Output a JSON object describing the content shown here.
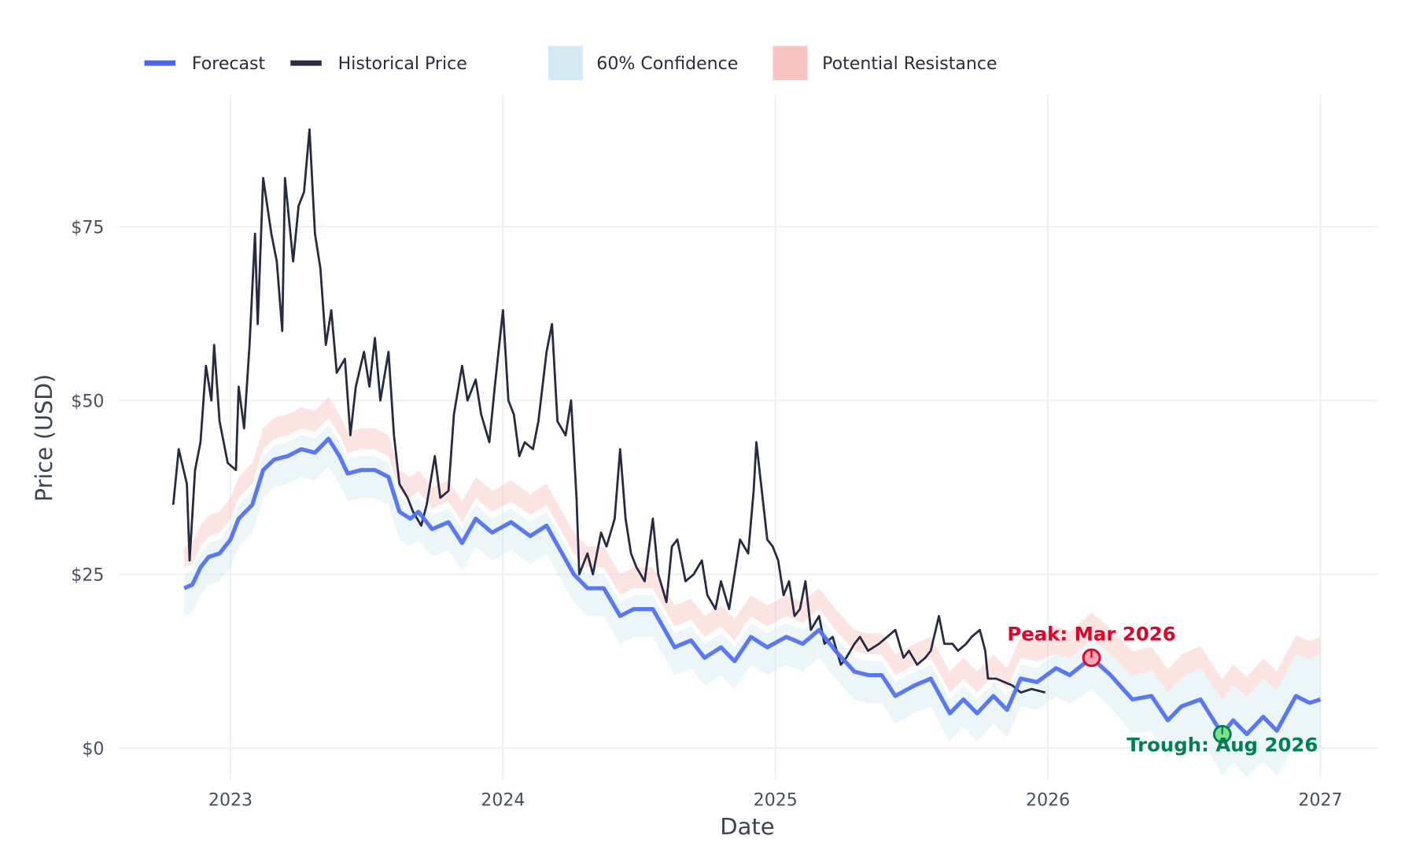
{
  "chart_data": {
    "type": "line",
    "title": "",
    "xlabel": "Date",
    "ylabel": "Price (USD)",
    "xlim": [
      2022.59,
      2027.21
    ],
    "ylim": [
      -4.5,
      94
    ],
    "grid": true,
    "legend_position": "top-left",
    "x_ticks": [
      {
        "value": 2023,
        "label": "2023"
      },
      {
        "value": 2024,
        "label": "2024"
      },
      {
        "value": 2025,
        "label": "2025"
      },
      {
        "value": 2026,
        "label": "2026"
      },
      {
        "value": 2027,
        "label": "2027"
      }
    ],
    "y_ticks": [
      {
        "value": 0,
        "label": "$0"
      },
      {
        "value": 25,
        "label": "$25"
      },
      {
        "value": 50,
        "label": "$50"
      },
      {
        "value": 75,
        "label": "$75"
      }
    ],
    "legend": [
      {
        "label": "Forecast",
        "kind": "line",
        "color": "#4a66f0"
      },
      {
        "label": "Historical Price",
        "kind": "line",
        "color": "#2a2d45"
      },
      {
        "label": "60% Confidence",
        "kind": "patch",
        "color": "#d4eaf2"
      },
      {
        "label": "Potential Resistance",
        "kind": "patch",
        "color": "#f8c4c2"
      }
    ],
    "colors": {
      "forecast": "#5271f0",
      "historical": "#262a42",
      "confidence": "#d4eaf2",
      "resistance": "#f8c4c2",
      "peak": "#e0002a",
      "trough": "#008050",
      "grid": "#ebedf0"
    },
    "historical": {
      "name": "Historical Price",
      "x": [
        2022.79,
        2022.81,
        2022.84,
        2022.85,
        2022.87,
        2022.89,
        2022.91,
        2022.93,
        2022.94,
        2022.96,
        2022.99,
        2023.02,
        2023.03,
        2023.05,
        2023.07,
        2023.09,
        2023.1,
        2023.12,
        2023.15,
        2023.17,
        2023.19,
        2023.2,
        2023.23,
        2023.25,
        2023.27,
        2023.29,
        2023.31,
        2023.33,
        2023.35,
        2023.37,
        2023.39,
        2023.42,
        2023.44,
        2023.46,
        2023.49,
        2023.51,
        2023.53,
        2023.55,
        2023.58,
        2023.6,
        2023.62,
        2023.65,
        2023.67,
        2023.7,
        2023.72,
        2023.75,
        2023.77,
        2023.8,
        2023.82,
        2023.85,
        2023.87,
        2023.9,
        2023.92,
        2023.95,
        2023.97,
        2024.0,
        2024.02,
        2024.04,
        2024.06,
        2024.08,
        2024.11,
        2024.13,
        2024.16,
        2024.18,
        2024.2,
        2024.23,
        2024.25,
        2024.27,
        2024.28,
        2024.31,
        2024.33,
        2024.36,
        2024.38,
        2024.41,
        2024.43,
        2024.45,
        2024.47,
        2024.49,
        2024.52,
        2024.55,
        2024.57,
        2024.6,
        2024.62,
        2024.64,
        2024.67,
        2024.7,
        2024.73,
        2024.75,
        2024.78,
        2024.8,
        2024.83,
        2024.85,
        2024.87,
        2024.9,
        2024.92,
        2024.93,
        2024.95,
        2024.97,
        2024.99,
        2025.01,
        2025.03,
        2025.05,
        2025.07,
        2025.09,
        2025.11,
        2025.13,
        2025.16,
        2025.18,
        2025.21,
        2025.24,
        2025.26,
        2025.29,
        2025.31,
        2025.34,
        2025.38,
        2025.41,
        2025.44,
        2025.47,
        2025.49,
        2025.52,
        2025.55,
        2025.57,
        2025.6,
        2025.62,
        2025.65,
        2025.67,
        2025.7,
        2025.72,
        2025.75,
        2025.77,
        2025.78,
        2025.81,
        2025.84,
        2025.87,
        2025.9,
        2025.94,
        2025.99
      ],
      "y": [
        35,
        43,
        38,
        27,
        40,
        44,
        55,
        50,
        58,
        47,
        41,
        40,
        52,
        46,
        58,
        74,
        61,
        82,
        74,
        70,
        60,
        82,
        70,
        78,
        80,
        89,
        74,
        69,
        58,
        63,
        54,
        56,
        45,
        52,
        57,
        52,
        59,
        50,
        57,
        45,
        38,
        36,
        34,
        32,
        35,
        42,
        36,
        37,
        48,
        55,
        50,
        53,
        48,
        44,
        52,
        63,
        50,
        48,
        42,
        44,
        43,
        47,
        57,
        61,
        47,
        45,
        50,
        36,
        25,
        28,
        25,
        31,
        29,
        33,
        43,
        33,
        28,
        26,
        24,
        33,
        25,
        21,
        29,
        30,
        24,
        25,
        27,
        22,
        20,
        24,
        20,
        25,
        30,
        28,
        37,
        44,
        37,
        30,
        29,
        27,
        22,
        24,
        19,
        20,
        24,
        17,
        19,
        15,
        16,
        12,
        13,
        15,
        16,
        14,
        15,
        16,
        17,
        13,
        14,
        12,
        13,
        14,
        19,
        15,
        15,
        14,
        15,
        16,
        17,
        14,
        10,
        10,
        9.5,
        9,
        8,
        8.5,
        8
      ]
    },
    "forecast": {
      "name": "Forecast",
      "columns": [
        "date",
        "forecast",
        "confidence_low",
        "confidence_high",
        "resistance_low",
        "resistance_high"
      ],
      "rows": [
        [
          2022.83,
          23,
          19,
          25,
          26,
          29
        ],
        [
          2022.86,
          23.5,
          19.5,
          25.5,
          26.5,
          29.5
        ],
        [
          2022.89,
          26,
          22,
          28,
          29,
          32
        ],
        [
          2022.92,
          27.5,
          23.5,
          29.5,
          30.5,
          33.5
        ],
        [
          2022.96,
          28,
          24,
          30,
          31,
          34
        ],
        [
          2023.0,
          30,
          26,
          32,
          33,
          36
        ],
        [
          2023.03,
          33,
          29,
          35,
          36,
          39
        ],
        [
          2023.08,
          35,
          31,
          37,
          38,
          41
        ],
        [
          2023.12,
          40,
          36,
          42,
          43,
          46
        ],
        [
          2023.16,
          41.5,
          37.5,
          43.5,
          44.5,
          47.5
        ],
        [
          2023.21,
          42,
          38,
          44,
          45,
          48
        ],
        [
          2023.26,
          43,
          39,
          45,
          46,
          49
        ],
        [
          2023.31,
          42.5,
          38.5,
          44.5,
          45.5,
          48.5
        ],
        [
          2023.36,
          44.5,
          40.5,
          46.5,
          47.5,
          50.5
        ],
        [
          2023.4,
          42,
          38,
          44,
          45,
          48
        ],
        [
          2023.43,
          39.5,
          35.5,
          41.5,
          42.5,
          45.5
        ],
        [
          2023.48,
          40,
          36,
          42,
          43,
          46
        ],
        [
          2023.53,
          40,
          36,
          42,
          43,
          46
        ],
        [
          2023.58,
          39,
          35,
          41,
          42,
          45
        ],
        [
          2023.62,
          34,
          30,
          36,
          37,
          40
        ],
        [
          2023.66,
          33,
          29,
          35,
          36,
          39
        ],
        [
          2023.69,
          34,
          30,
          36,
          37,
          40
        ],
        [
          2023.74,
          31.5,
          27.5,
          33.5,
          34.5,
          37.5
        ],
        [
          2023.8,
          32.5,
          28.5,
          34.5,
          35.5,
          38.5
        ],
        [
          2023.85,
          29.5,
          25.5,
          31.5,
          32.5,
          35.5
        ],
        [
          2023.9,
          33,
          29,
          35,
          36,
          39
        ],
        [
          2023.96,
          31,
          27,
          33,
          34,
          37
        ],
        [
          2024.03,
          32.5,
          28.5,
          34.5,
          35.5,
          38.5
        ],
        [
          2024.1,
          30.5,
          26.5,
          32.5,
          33.5,
          36.5
        ],
        [
          2024.16,
          32,
          28,
          34,
          35,
          38
        ],
        [
          2024.21,
          28.5,
          24.5,
          30.5,
          31.5,
          34.5
        ],
        [
          2024.26,
          25,
          21,
          27,
          28,
          31
        ],
        [
          2024.31,
          23,
          19,
          25,
          26,
          29
        ],
        [
          2024.37,
          23,
          19,
          25,
          26,
          29
        ],
        [
          2024.43,
          19,
          15,
          21,
          22,
          25
        ],
        [
          2024.48,
          20,
          16,
          22,
          23,
          26
        ],
        [
          2024.55,
          20,
          16,
          22,
          23,
          26
        ],
        [
          2024.63,
          14.5,
          10.5,
          16.5,
          17.5,
          20.5
        ],
        [
          2024.69,
          15.5,
          11.5,
          17.5,
          18.5,
          21.5
        ],
        [
          2024.74,
          13,
          9,
          15,
          16,
          19
        ],
        [
          2024.8,
          14.5,
          10.5,
          16.5,
          17.5,
          20.5
        ],
        [
          2024.85,
          12.5,
          8.5,
          14.5,
          15.5,
          18.5
        ],
        [
          2024.91,
          16,
          12,
          18,
          19,
          22
        ],
        [
          2024.97,
          14.5,
          10.5,
          16.5,
          17.5,
          20.5
        ],
        [
          2025.04,
          16,
          12,
          18,
          19,
          22
        ],
        [
          2025.1,
          15,
          11,
          17,
          18,
          21
        ],
        [
          2025.16,
          17,
          13,
          19,
          20,
          23
        ],
        [
          2025.22,
          14,
          10,
          16,
          17,
          20
        ],
        [
          2025.29,
          11,
          7,
          13,
          14,
          17
        ],
        [
          2025.34,
          10.5,
          6.5,
          12.5,
          13.5,
          16.5
        ],
        [
          2025.39,
          10.5,
          6.5,
          12.5,
          13.5,
          16.5
        ],
        [
          2025.44,
          7.5,
          3.5,
          9.5,
          10.5,
          13.5
        ],
        [
          2025.51,
          9,
          5,
          11,
          12,
          15
        ],
        [
          2025.57,
          10,
          6,
          12,
          13,
          16
        ],
        [
          2025.64,
          5,
          1,
          7,
          8,
          11
        ],
        [
          2025.69,
          7,
          3,
          9,
          10,
          13
        ],
        [
          2025.74,
          5,
          1,
          7,
          8,
          11
        ],
        [
          2025.8,
          7.5,
          3.5,
          9.5,
          10.5,
          13.5
        ],
        [
          2025.85,
          5.5,
          1.5,
          7.5,
          8.5,
          11.5
        ],
        [
          2025.9,
          10,
          6,
          12,
          13,
          16
        ],
        [
          2025.96,
          9.5,
          5.5,
          11.5,
          12.5,
          15.5
        ],
        [
          2026.03,
          11.5,
          7.4,
          13.6,
          13.6,
          17.6
        ],
        [
          2026.08,
          10.5,
          6.3,
          12.9,
          12.9,
          16.7
        ],
        [
          2026.16,
          13,
          8.5,
          15.7,
          15.7,
          19.5
        ],
        [
          2026.23,
          10.5,
          5.8,
          13.5,
          13.5,
          17.2
        ],
        [
          2026.31,
          7,
          2.1,
          10.4,
          10.4,
          13.9
        ],
        [
          2026.38,
          7.5,
          2.4,
          11.2,
          11.2,
          14.6
        ],
        [
          2026.44,
          4,
          -1.3,
          8,
          8,
          11.3
        ],
        [
          2026.49,
          6,
          0.5,
          10.2,
          10.2,
          13.5
        ],
        [
          2026.56,
          7,
          1.3,
          11.5,
          11.5,
          14.7
        ],
        [
          2026.64,
          2,
          -3.9,
          6.9,
          6.9,
          9.9
        ],
        [
          2026.68,
          4,
          -2,
          9.1,
          9.1,
          12
        ],
        [
          2026.73,
          2,
          -4.2,
          7.3,
          7.3,
          10.2
        ],
        [
          2026.79,
          4.5,
          -1.9,
          10,
          10,
          12.9
        ],
        [
          2026.84,
          2.5,
          -4,
          8.3,
          8.3,
          11
        ],
        [
          2026.91,
          7.5,
          0.8,
          13.6,
          13.6,
          16.2
        ],
        [
          2026.96,
          6.5,
          -0.4,
          12.8,
          12.8,
          15.4
        ],
        [
          2027.0,
          7,
          0,
          13.5,
          13.5,
          16
        ]
      ]
    },
    "annotations": [
      {
        "label": "Peak: Mar 2026",
        "x": 2026.16,
        "y": 13,
        "kind": "peak"
      },
      {
        "label": "Trough: Aug 2026",
        "x": 2026.64,
        "y": 2,
        "kind": "trough"
      }
    ]
  }
}
